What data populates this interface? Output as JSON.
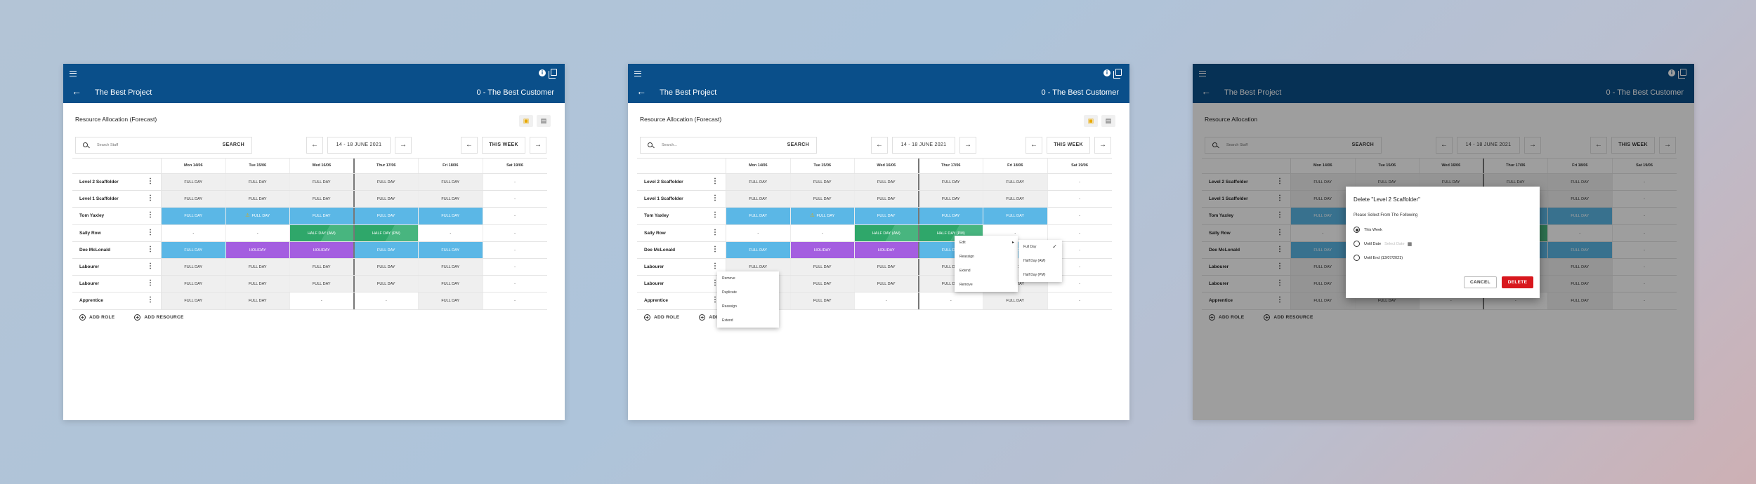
{
  "project_title": "The Best Project",
  "customer": "0 - The Best Customer",
  "card_title": "Resource Allocation (Forecast)",
  "card_title_plain": "Resource Allocation",
  "search_placeholder": "Search Staff",
  "search_placeholder_alt": "Search...",
  "search_label": "SEARCH",
  "date_range": "14 - 18 JUNE 2021",
  "this_week_label": "THIS WEEK",
  "add_role_label": "ADD ROLE",
  "add_resource_label": "ADD RESOURCE",
  "days": [
    "Mon 14/06",
    "Tue 15/06",
    "Wed 16/06",
    "Thur 17/06",
    "Fri 18/06",
    "Sat 19/06"
  ],
  "rows": [
    {
      "name": "Level 2 Scaffolder",
      "cells": [
        {
          "t": "FULL DAY",
          "s": "fd"
        },
        {
          "t": "FULL DAY",
          "s": "fd"
        },
        {
          "t": "FULL DAY",
          "s": "fd"
        },
        {
          "t": "FULL DAY",
          "s": "fd"
        },
        {
          "t": "FULL DAY",
          "s": "fd"
        },
        {
          "t": "-",
          "s": "em"
        }
      ]
    },
    {
      "name": "Level 1 Scaffolder",
      "cells": [
        {
          "t": "FULL DAY",
          "s": "fd"
        },
        {
          "t": "FULL DAY",
          "s": "fd"
        },
        {
          "t": "FULL DAY",
          "s": "fd"
        },
        {
          "t": "FULL DAY",
          "s": "fd"
        },
        {
          "t": "FULL DAY",
          "s": "fd"
        },
        {
          "t": "-",
          "s": "em"
        }
      ]
    },
    {
      "name": "Tom Yaxley",
      "cells": [
        {
          "t": "FULL DAY",
          "s": "bl"
        },
        {
          "t": "FULL DAY",
          "s": "bl",
          "warn": true
        },
        {
          "t": "FULL DAY",
          "s": "bl"
        },
        {
          "t": "FULL DAY",
          "s": "bl"
        },
        {
          "t": "FULL DAY",
          "s": "bl"
        },
        {
          "t": "-",
          "s": "em"
        }
      ]
    },
    {
      "name": "Sally Row",
      "cells": [
        {
          "t": "-",
          "s": "em"
        },
        {
          "t": "-",
          "s": "em"
        },
        {
          "t": "HALF DAY (AM)",
          "s": "gr"
        },
        {
          "t": "HALF DAY (PM)",
          "s": "gr"
        },
        {
          "t": "-",
          "s": "em"
        },
        {
          "t": "-",
          "s": "em"
        }
      ]
    },
    {
      "name": "Dee McLonald",
      "cells": [
        {
          "t": "FULL DAY",
          "s": "bl"
        },
        {
          "t": "HOLIDAY",
          "s": "pu"
        },
        {
          "t": "HOLIDAY",
          "s": "pu"
        },
        {
          "t": "FULL DAY",
          "s": "bl"
        },
        {
          "t": "FULL DAY",
          "s": "bl"
        },
        {
          "t": "-",
          "s": "em"
        }
      ]
    },
    {
      "name": "Labourer",
      "cells": [
        {
          "t": "FULL DAY",
          "s": "fd"
        },
        {
          "t": "FULL DAY",
          "s": "fd"
        },
        {
          "t": "FULL DAY",
          "s": "fd"
        },
        {
          "t": "FULL DAY",
          "s": "fd"
        },
        {
          "t": "FULL DAY",
          "s": "fd"
        },
        {
          "t": "-",
          "s": "em"
        }
      ]
    },
    {
      "name": "Labourer",
      "cells": [
        {
          "t": "FULL DAY",
          "s": "fd"
        },
        {
          "t": "FULL DAY",
          "s": "fd"
        },
        {
          "t": "FULL DAY",
          "s": "fd"
        },
        {
          "t": "FULL DAY",
          "s": "fd"
        },
        {
          "t": "FULL DAY",
          "s": "fd"
        },
        {
          "t": "-",
          "s": "em"
        }
      ]
    },
    {
      "name": "Apprentice",
      "cells": [
        {
          "t": "FULL DAY",
          "s": "fd"
        },
        {
          "t": "FULL DAY",
          "s": "fd"
        },
        {
          "t": "-",
          "s": "em"
        },
        {
          "t": "-",
          "s": "em"
        },
        {
          "t": "FULL DAY",
          "s": "fd"
        },
        {
          "t": "-",
          "s": "em"
        }
      ]
    }
  ],
  "row_menu": [
    "Remove",
    "Duplicate",
    "Reassign",
    "Extend"
  ],
  "cell_menu": [
    "Edit",
    "Reassign",
    "Extend",
    "Remove"
  ],
  "edit_submenu": [
    "Full Day",
    "Half Day (AM)",
    "Half Day (PM)"
  ],
  "dialog": {
    "title": "Delete \"Level 2 Scaffolder\"",
    "subtitle": "Please Select From The Following",
    "options": [
      "This Week",
      "Until Date",
      "Until End (13/07/2021)"
    ],
    "date_placeholder": "Select Date",
    "cancel": "CANCEL",
    "delete": "DELETE"
  }
}
